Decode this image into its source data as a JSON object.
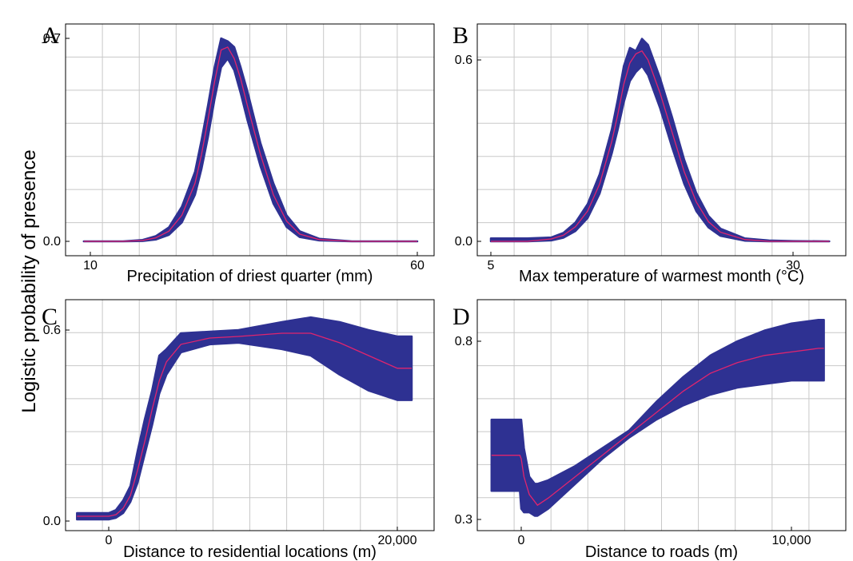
{
  "figure": {
    "ylabel": "Logistic probability of presence"
  },
  "colors": {
    "band": "#2e3192",
    "mean_line": "#e0246e",
    "grid": "#c8c8c8"
  },
  "chart_data": [
    {
      "type": "line",
      "panel": "A",
      "xlabel": "Precipitation of driest quarter (mm)",
      "xlim": [
        2,
        62
      ],
      "ylim": [
        -0.05,
        0.74
      ],
      "xticks": [
        10,
        60
      ],
      "xtick_labels": [
        "10",
        "60"
      ],
      "yticks": [
        0.0,
        0.7
      ],
      "ytick_labels": [
        "0.0",
        "0.7"
      ],
      "grid": true,
      "series": [
        {
          "x": [
            9,
            15,
            18,
            20,
            22,
            24,
            26,
            27,
            28,
            29,
            30,
            31,
            32,
            33,
            34,
            36,
            38,
            40,
            42,
            45,
            50,
            55,
            60
          ],
          "mean": [
            0,
            0,
            0.003,
            0.012,
            0.035,
            0.09,
            0.2,
            0.3,
            0.42,
            0.55,
            0.66,
            0.67,
            0.63,
            0.56,
            0.47,
            0.3,
            0.16,
            0.07,
            0.025,
            0.006,
            0,
            0,
            0
          ],
          "lower": [
            0,
            0,
            0.001,
            0.006,
            0.022,
            0.065,
            0.16,
            0.25,
            0.36,
            0.49,
            0.6,
            0.63,
            0.59,
            0.51,
            0.42,
            0.26,
            0.13,
            0.05,
            0.015,
            0.003,
            0,
            0,
            0
          ],
          "upper": [
            0,
            0,
            0.005,
            0.018,
            0.048,
            0.12,
            0.24,
            0.35,
            0.47,
            0.6,
            0.7,
            0.69,
            0.67,
            0.6,
            0.52,
            0.34,
            0.2,
            0.09,
            0.035,
            0.009,
            0,
            0,
            0
          ]
        }
      ]
    },
    {
      "type": "line",
      "panel": "B",
      "xlabel": "Max temperature of warmest month (°C)",
      "xlim": [
        3.5,
        36
      ],
      "ylim": [
        -0.04,
        0.66
      ],
      "xticks": [
        5,
        30
      ],
      "xtick_labels": [
        "5",
        "30"
      ],
      "yticks": [
        0.0,
        0.6
      ],
      "ytick_labels": [
        "0.0",
        "0.6"
      ],
      "grid": true,
      "series": [
        {
          "x": [
            5,
            8,
            10,
            11,
            12,
            13,
            14,
            15,
            15.5,
            16,
            16.5,
            17,
            17.5,
            18,
            19,
            20,
            21,
            22,
            23,
            24,
            26,
            28,
            30,
            33
          ],
          "mean": [
            0,
            0,
            0.008,
            0.02,
            0.048,
            0.1,
            0.19,
            0.33,
            0.42,
            0.52,
            0.59,
            0.62,
            0.63,
            0.6,
            0.49,
            0.36,
            0.23,
            0.13,
            0.065,
            0.03,
            0.006,
            0,
            0,
            0
          ],
          "lower": [
            0,
            0,
            0.003,
            0.012,
            0.034,
            0.077,
            0.158,
            0.29,
            0.37,
            0.46,
            0.53,
            0.56,
            0.58,
            0.55,
            0.44,
            0.31,
            0.19,
            0.1,
            0.046,
            0.018,
            0.002,
            0,
            0,
            0
          ],
          "upper": [
            0.01,
            0.01,
            0.013,
            0.028,
            0.062,
            0.123,
            0.222,
            0.37,
            0.47,
            0.58,
            0.64,
            0.63,
            0.67,
            0.65,
            0.54,
            0.41,
            0.27,
            0.16,
            0.084,
            0.042,
            0.01,
            0.003,
            0.001,
            0
          ]
        }
      ]
    },
    {
      "type": "line",
      "panel": "C",
      "xlabel": "Distance to residential locations (m)",
      "xlim": [
        -3600,
        22500
      ],
      "ylim": [
        -0.025,
        0.64
      ],
      "xticks": [
        0,
        20000
      ],
      "xtick_labels": [
        "0",
        "20,000"
      ],
      "yticks": [
        0.0,
        0.6
      ],
      "ytick_labels": [
        "0.0",
        "0.6"
      ],
      "grid": true,
      "series": [
        {
          "x": [
            -2200,
            0,
            500,
            1000,
            1500,
            2000,
            2500,
            3000,
            3500,
            4000,
            5000,
            7000,
            9000,
            12000,
            14000,
            16000,
            18000,
            20000,
            21000
          ],
          "mean": [
            0.015,
            0.015,
            0.02,
            0.04,
            0.08,
            0.16,
            0.25,
            0.35,
            0.44,
            0.5,
            0.555,
            0.575,
            0.58,
            0.59,
            0.59,
            0.56,
            0.52,
            0.48,
            0.48
          ],
          "lower": [
            0.005,
            0.005,
            0.01,
            0.025,
            0.06,
            0.12,
            0.21,
            0.3,
            0.4,
            0.46,
            0.53,
            0.555,
            0.56,
            0.54,
            0.52,
            0.46,
            0.41,
            0.38,
            0.38
          ],
          "upper": [
            0.025,
            0.025,
            0.035,
            0.065,
            0.11,
            0.22,
            0.32,
            0.41,
            0.52,
            0.54,
            0.59,
            0.595,
            0.6,
            0.625,
            0.64,
            0.625,
            0.6,
            0.58,
            0.58
          ]
        }
      ]
    },
    {
      "type": "line",
      "panel": "D",
      "xlabel": "Distance to roads (m)",
      "xlim": [
        -1700,
        12400
      ],
      "ylim": [
        0.29,
        0.88
      ],
      "xticks": [
        0,
        10000
      ],
      "xtick_labels": [
        "0",
        "10,000"
      ],
      "yticks": [
        0.3,
        0.8
      ],
      "ytick_labels": [
        "0.3",
        "0.8"
      ],
      "grid": true,
      "series": [
        {
          "x": [
            -1100,
            -50,
            0,
            100,
            300,
            500,
            600,
            1000,
            2000,
            3000,
            4000,
            5000,
            6000,
            7000,
            8000,
            9000,
            10000,
            11000,
            11200
          ],
          "mean": [
            0.48,
            0.48,
            0.47,
            0.42,
            0.37,
            0.35,
            0.34,
            0.36,
            0.42,
            0.48,
            0.54,
            0.6,
            0.66,
            0.71,
            0.74,
            0.76,
            0.77,
            0.78,
            0.78
          ],
          "lower": [
            0.38,
            0.38,
            0.33,
            0.32,
            0.32,
            0.31,
            0.31,
            0.33,
            0.4,
            0.47,
            0.53,
            0.58,
            0.62,
            0.65,
            0.67,
            0.68,
            0.69,
            0.69,
            0.69
          ],
          "upper": [
            0.58,
            0.58,
            0.58,
            0.5,
            0.42,
            0.4,
            0.4,
            0.41,
            0.45,
            0.5,
            0.55,
            0.63,
            0.7,
            0.76,
            0.8,
            0.83,
            0.85,
            0.86,
            0.86
          ]
        }
      ]
    }
  ]
}
